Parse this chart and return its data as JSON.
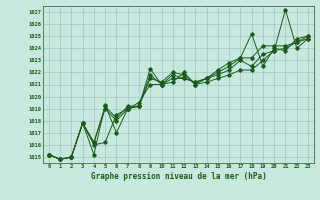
{
  "xlabel": "Graphe pression niveau de la mer (hPa)",
  "ylim": [
    1014.5,
    1027.5
  ],
  "xlim": [
    -0.5,
    23.5
  ],
  "yticks": [
    1015,
    1016,
    1017,
    1018,
    1019,
    1020,
    1021,
    1022,
    1023,
    1024,
    1025,
    1026,
    1027
  ],
  "xticks": [
    0,
    1,
    2,
    3,
    4,
    5,
    6,
    7,
    8,
    9,
    10,
    11,
    12,
    13,
    14,
    15,
    16,
    17,
    18,
    19,
    20,
    21,
    22,
    23
  ],
  "bg_color": "#c8e8e0",
  "grid_color": "#a0c8c0",
  "line_color": "#1a5c1a",
  "series": [
    [
      1015.2,
      1014.8,
      1015.0,
      1017.8,
      1016.0,
      1016.2,
      1018.5,
      1019.0,
      1019.2,
      1022.3,
      1021.0,
      1021.2,
      1022.0,
      1021.0,
      1021.2,
      1021.5,
      1021.8,
      1022.2,
      1022.2,
      1023.0,
      1023.8,
      1027.2,
      1024.0,
      1024.8
    ],
    [
      1015.2,
      1014.8,
      1015.0,
      1017.8,
      1016.2,
      1019.0,
      1018.0,
      1019.0,
      1019.5,
      1021.0,
      1021.0,
      1021.5,
      1021.5,
      1021.2,
      1021.5,
      1021.8,
      1022.2,
      1023.0,
      1022.5,
      1023.5,
      1023.8,
      1024.0,
      1024.5,
      1024.8
    ],
    [
      1015.2,
      1014.8,
      1015.0,
      1017.8,
      1016.2,
      1019.2,
      1018.2,
      1019.2,
      1019.2,
      1021.8,
      1021.0,
      1021.8,
      1021.5,
      1021.2,
      1021.5,
      1022.2,
      1022.8,
      1023.2,
      1025.2,
      1022.5,
      1024.0,
      1023.8,
      1024.8,
      1025.0
    ],
    [
      1015.2,
      1014.8,
      1015.0,
      1017.8,
      1015.2,
      1019.3,
      1017.0,
      1019.0,
      1019.2,
      1021.5,
      1021.2,
      1022.0,
      1021.8,
      1021.0,
      1021.5,
      1022.0,
      1022.5,
      1023.2,
      1023.2,
      1024.2,
      1024.2,
      1024.2,
      1024.5,
      1025.0
    ]
  ]
}
